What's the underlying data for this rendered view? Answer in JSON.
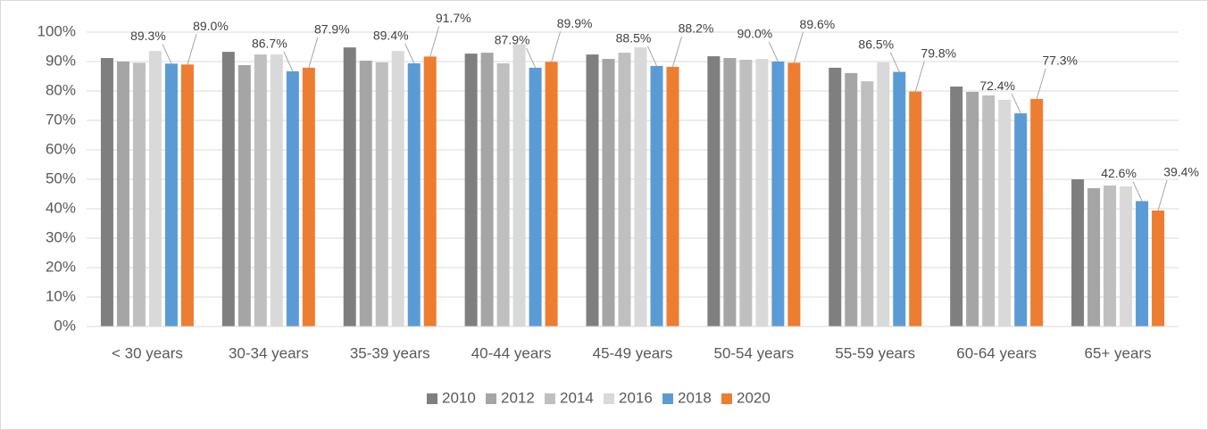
{
  "chart_data": {
    "type": "bar",
    "categories": [
      "< 30 years",
      "30-34 years",
      "35-39 years",
      "40-44 years",
      "45-49 years",
      "50-54 years",
      "55-59 years",
      "60-64 years",
      "65+ years"
    ],
    "series": [
      {
        "name": "2010",
        "color": "#7f7f7f",
        "values": [
          91.2,
          93.3,
          94.8,
          92.7,
          92.4,
          91.8,
          87.9,
          81.5,
          50.0
        ]
      },
      {
        "name": "2012",
        "color": "#a5a5a5",
        "values": [
          90.0,
          88.8,
          90.3,
          93.0,
          90.9,
          91.2,
          86.1,
          79.7,
          47.0
        ]
      },
      {
        "name": "2014",
        "color": "#bfbfbf",
        "values": [
          89.6,
          92.4,
          89.7,
          89.4,
          93.0,
          90.6,
          83.3,
          78.5,
          47.9
        ]
      },
      {
        "name": "2016",
        "color": "#d9d9d9",
        "values": [
          93.6,
          92.4,
          93.6,
          95.8,
          94.8,
          90.9,
          89.7,
          77.0,
          47.6
        ]
      },
      {
        "name": "2018",
        "color": "#5b9bd5",
        "values": [
          89.3,
          86.7,
          89.4,
          87.9,
          88.5,
          90.0,
          86.5,
          72.4,
          42.6
        ],
        "value_labels": [
          "89.3%",
          "86.7%",
          "89.4%",
          "87.9%",
          "88.5%",
          "90.0%",
          "86.5%",
          "72.4%",
          "42.6%"
        ]
      },
      {
        "name": "2020",
        "color": "#ed7d31",
        "values": [
          89.0,
          87.9,
          91.7,
          89.9,
          88.2,
          89.6,
          79.8,
          77.3,
          39.4
        ],
        "value_labels": [
          "89.0%",
          "87.9%",
          "91.7%",
          "89.9%",
          "88.2%",
          "89.6%",
          "79.8%",
          "77.3%",
          "39.4%"
        ]
      }
    ],
    "ylim": [
      0,
      100
    ],
    "yticks": [
      {
        "value": 0,
        "label": "0%"
      },
      {
        "value": 10,
        "label": "10%"
      },
      {
        "value": 20,
        "label": "20%"
      },
      {
        "value": 30,
        "label": "30%"
      },
      {
        "value": 40,
        "label": "40%"
      },
      {
        "value": 50,
        "label": "50%"
      },
      {
        "value": 60,
        "label": "60%"
      },
      {
        "value": 70,
        "label": "70%"
      },
      {
        "value": 80,
        "label": "80%"
      },
      {
        "value": 90,
        "label": "90%"
      },
      {
        "value": 100,
        "label": "100%"
      }
    ],
    "grid": true,
    "legend": "bottom"
  }
}
